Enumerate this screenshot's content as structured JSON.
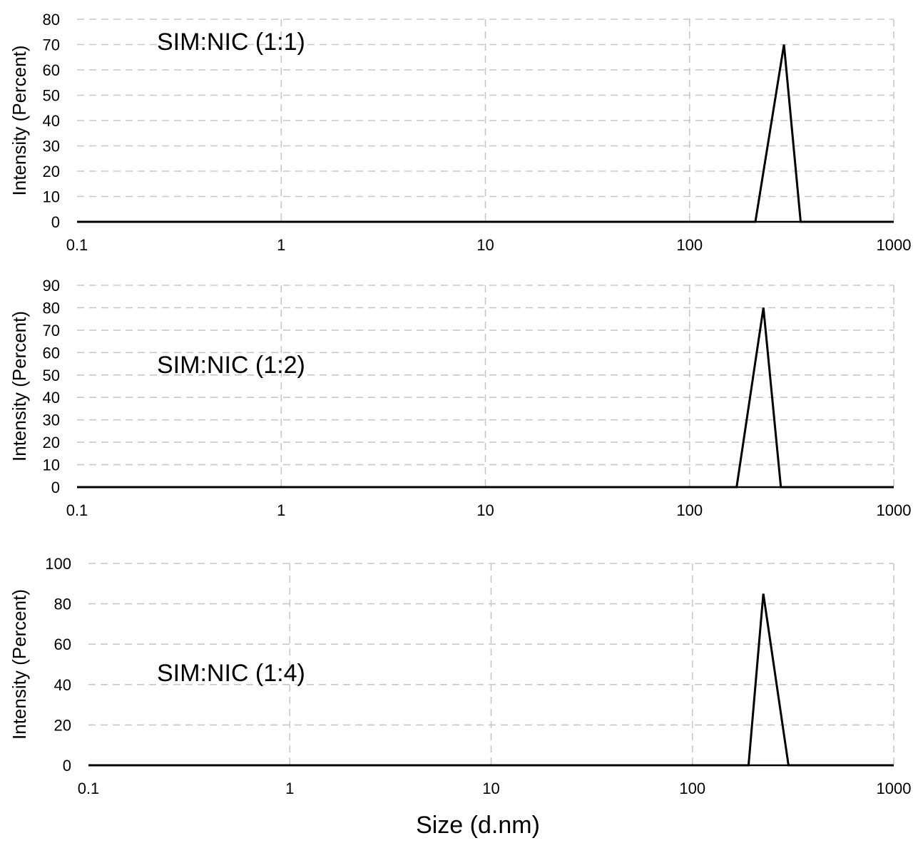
{
  "chart_data": [
    {
      "type": "line",
      "annotation": "SIM:NIC (1:1)",
      "ylabel": "Intensity (Percent)",
      "x_scale": "log",
      "xlim": [
        0.1,
        1000
      ],
      "ylim": [
        0,
        80
      ],
      "x_ticks": [
        "0.1",
        "1",
        "10",
        "100",
        "1000"
      ],
      "y_ticks": [
        "0",
        "10",
        "20",
        "30",
        "40",
        "50",
        "60",
        "70",
        "80"
      ],
      "grid": true,
      "series": [
        {
          "x": [
            0.1,
            210,
            290,
            350,
            1000
          ],
          "y": [
            0,
            0,
            70,
            0,
            0
          ]
        }
      ]
    },
    {
      "type": "line",
      "annotation": "SIM:NIC (1:2)",
      "ylabel": "Intensity (Percent)",
      "x_scale": "log",
      "xlim": [
        0.1,
        1000
      ],
      "ylim": [
        0,
        90
      ],
      "x_ticks": [
        "0.1",
        "1",
        "10",
        "100",
        "1000"
      ],
      "y_ticks": [
        "0",
        "10",
        "20",
        "30",
        "40",
        "50",
        "60",
        "70",
        "80",
        "90"
      ],
      "grid": true,
      "series": [
        {
          "x": [
            0.1,
            170,
            230,
            280,
            1000
          ],
          "y": [
            0,
            0,
            80,
            0,
            0
          ]
        }
      ]
    },
    {
      "type": "line",
      "annotation": "SIM:NIC (1:4)",
      "ylabel": "Intensity (Percent)",
      "x_scale": "log",
      "xlim": [
        0.1,
        1000
      ],
      "ylim": [
        0,
        100
      ],
      "x_ticks": [
        "0.1",
        "1",
        "10",
        "100",
        "1000"
      ],
      "y_ticks": [
        "0",
        "20",
        "40",
        "60",
        "80",
        "100"
      ],
      "grid": true,
      "series": [
        {
          "x": [
            0.1,
            190,
            225,
            300,
            1000
          ],
          "y": [
            0,
            0,
            85,
            0,
            0
          ]
        }
      ]
    }
  ],
  "figure": {
    "xlabel": "Size (d.nm)"
  }
}
